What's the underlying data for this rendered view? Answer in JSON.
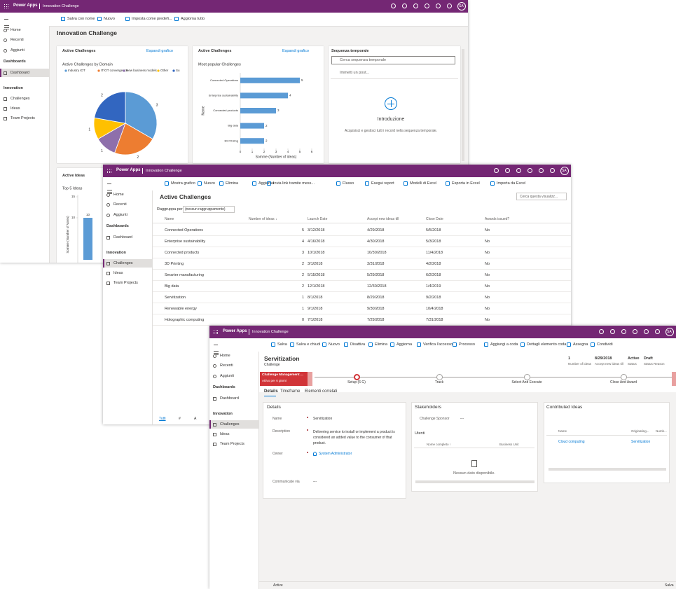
{
  "app": {
    "name": "Power Apps",
    "environment": "Innovation Challenge",
    "user": "SA"
  },
  "nav": {
    "items": [
      "Home",
      "Recenti",
      "Aggiunti"
    ],
    "sections": [
      {
        "title": "Dashboards",
        "items": [
          "Dashboard"
        ]
      },
      {
        "title": "Innovation",
        "items": [
          "Challenges",
          "Ideas",
          "Team Projects"
        ]
      }
    ]
  },
  "dashboard": {
    "commands": [
      "Salva con nome",
      "Nuovo",
      "Imposta come predefi...",
      "Aggiorna tutto"
    ],
    "title": "Innovation Challenge",
    "cards": [
      {
        "title": "Active Challenges",
        "action": "Espandi grafico"
      },
      {
        "title": "Active Challenges",
        "action": "Espandi grafico"
      },
      {
        "title": "Active Ideas"
      }
    ],
    "timeline": {
      "title": "Sequenza temporale",
      "search": "Cerca sequenza temporale",
      "post": "Immetti un post...",
      "heading": "Introduzione",
      "text": "Acquisisci e gestisci tutti i record nella sequenza temporale."
    }
  },
  "chart_data": [
    {
      "type": "pie",
      "title": "Active Challenges by Domain",
      "categories": [
        "Industry IOT",
        "IT/OT convergence",
        "New business models",
        "Other",
        "Su"
      ],
      "values": [
        3,
        2,
        1,
        1,
        2
      ],
      "colors": [
        "#5b9bd5",
        "#ed7d31",
        "#8e6fab",
        "#ffc000",
        "#3266c0"
      ]
    },
    {
      "type": "bar",
      "orientation": "horizontal",
      "title": "Most popular Challenges",
      "categories": [
        "Connected Operations",
        "Enterprise sustainability",
        "Connected products",
        "Big data",
        "3D Printing"
      ],
      "values": [
        5,
        4,
        3,
        2,
        2
      ],
      "color": "#5b9bd5",
      "xlim": [
        0,
        6
      ],
      "xticks": [
        0,
        1,
        2,
        3,
        4,
        5,
        6
      ],
      "xlabel": "Somme (Number of ideas)",
      "ylabel": "Name"
    },
    {
      "type": "bar",
      "title": "Top 5 Ideas",
      "categories": [
        null
      ],
      "values": [
        10
      ],
      "color": "#5b9bd5",
      "ylim": [
        0,
        15
      ],
      "yticks": [
        10,
        15
      ],
      "ylabel": "Somme (Number of Votes)"
    }
  ],
  "list": {
    "commands": [
      "Mostra grafico",
      "Nuovo",
      "Elimina",
      "Aggiorna",
      "Invia link tramite mess...",
      "Flusso",
      "Esegui report",
      "Modelli di Excel",
      "Esporta in Excel",
      "Importa da Excel"
    ],
    "title": "Active Challenges",
    "search": "Cerca questa visualizz...",
    "group_label": "Raggruppa per:",
    "group_value": "(nessun raggruppamento)",
    "columns": [
      "Name",
      "Number of ideas ↓",
      "Launch Date",
      "Accept new ideas till",
      "Close Date",
      "Awards issued?"
    ],
    "rows": [
      [
        "Connected Operations",
        5,
        "3/12/2018",
        "4/29/2018",
        "5/5/2018",
        "No"
      ],
      [
        "Enterprise sustainability",
        4,
        "4/16/2018",
        "4/30/2018",
        "5/3/2018",
        "No"
      ],
      [
        "Connected products",
        3,
        "10/1/2018",
        "10/30/2018",
        "11/4/2018",
        "No"
      ],
      [
        "3D Printing",
        2,
        "3/1/2018",
        "3/31/2018",
        "4/2/2018",
        "No"
      ],
      [
        "Smarter manufacturing",
        2,
        "5/15/2018",
        "5/29/2018",
        "6/2/2018",
        "No"
      ],
      [
        "Big data",
        2,
        "12/1/2018",
        "12/30/2018",
        "1/4/2019",
        "No"
      ],
      [
        "Servitization",
        1,
        "8/1/2018",
        "8/29/2018",
        "9/2/2018",
        "No"
      ],
      [
        "Renewable energy",
        1,
        "9/1/2018",
        "9/30/2018",
        "10/4/2018",
        "No"
      ],
      [
        "Holographic computing",
        0,
        "7/1/2018",
        "7/29/2018",
        "7/31/2018",
        "No"
      ]
    ],
    "alphabet": [
      "Tutti",
      "#",
      "A"
    ]
  },
  "record": {
    "commands": [
      "Salva",
      "Salva e chiudi",
      "Nuovo",
      "Disattiva",
      "Elimina",
      "Aggiorna",
      "Verifica l'accesso",
      "Processo",
      "Aggiungi a coda",
      "Dettagli elemento coda",
      "Assegna",
      "Condividi"
    ],
    "title": "Servitization",
    "entity": "Challenge",
    "header_fields": [
      {
        "value": "1",
        "label": "Number of ideas"
      },
      {
        "value": "8/29/2018",
        "label": "Accept new ideas till"
      },
      {
        "value": "Active",
        "label": "Status"
      },
      {
        "value": "Draft",
        "label": "Status Reason"
      }
    ],
    "process": {
      "name": "Challenge Management ...",
      "duration": "Attivo per 6 giorni",
      "stages": [
        "Setup  (6 G)",
        "Track",
        "Select And Execute",
        "Close And Award"
      ]
    },
    "tabs": [
      "Details",
      "Timeframe",
      "Elementi correlati"
    ],
    "details": {
      "title": "Details",
      "fields": [
        {
          "label": "Name",
          "value": "Servitization"
        },
        {
          "label": "Description",
          "value": "Delivering service to install or implement a product is considered an added value to the consumer of that product."
        },
        {
          "label": "Owner",
          "value": "System Administrator"
        },
        {
          "label": "Communicate via",
          "value": "---"
        }
      ]
    },
    "stakeholders": {
      "title": "Stakeholders",
      "sponsor_label": "Challenge Sponsor",
      "sponsor_value": "---",
      "users": "Utenti",
      "columns": [
        "Nome completo ↑",
        "Business Unit"
      ],
      "empty": "Nessun dato disponibile."
    },
    "ideas": {
      "title": "Contributed Ideas",
      "columns": [
        "Name",
        "Originating...",
        "Numb..."
      ],
      "rows": [
        [
          "Cloud computing",
          "Servitization"
        ]
      ]
    },
    "status": "Active",
    "save": "Salva"
  }
}
